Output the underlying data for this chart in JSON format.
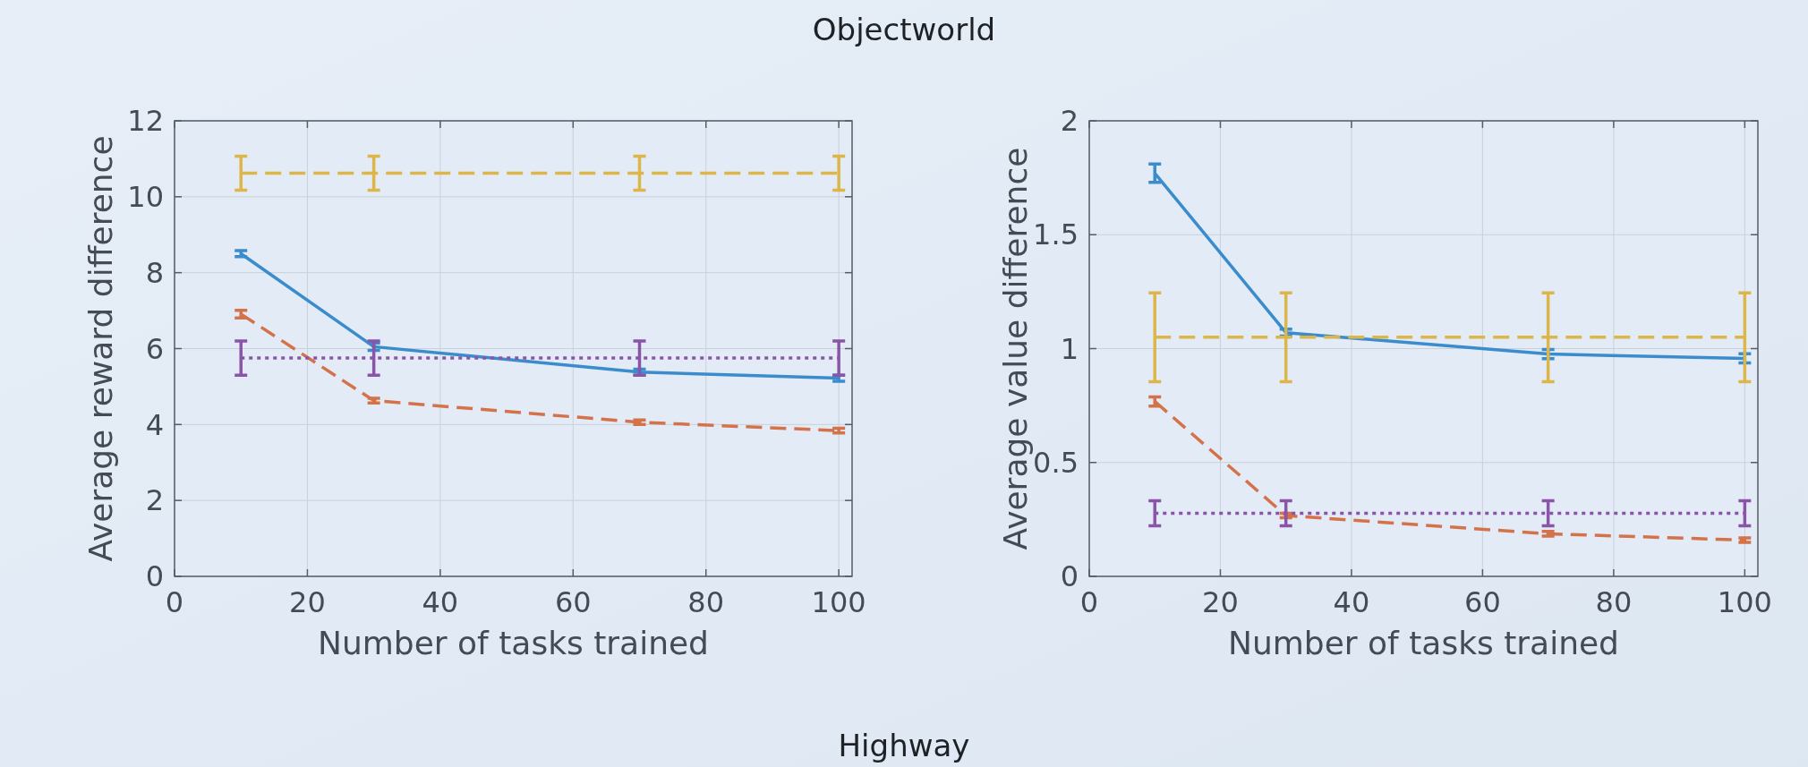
{
  "chart_data": [
    {
      "type": "line",
      "title": "Objectworld",
      "xlabel": "Number of tasks trained",
      "ylabel": "Average reward difference",
      "x": [
        10,
        30,
        70,
        100
      ],
      "xlim": [
        0,
        102
      ],
      "xticks": [
        0,
        20,
        40,
        60,
        80,
        100
      ],
      "ylim": [
        0,
        12
      ],
      "yticks": [
        0,
        2,
        4,
        6,
        8,
        10,
        12
      ],
      "grid": true,
      "series": [
        {
          "color": "#3a8ccc",
          "line_style": "solid",
          "values": [
            8.5,
            6.05,
            5.38,
            5.22
          ],
          "errors": [
            0.08,
            0.1,
            0.08,
            0.08
          ]
        },
        {
          "color": "#d4724a",
          "line_style": "dashed",
          "values": [
            6.91,
            4.63,
            4.06,
            3.84
          ],
          "errors": [
            0.1,
            0.06,
            0.06,
            0.06
          ]
        },
        {
          "color": "#ddb64a",
          "line_style": "dashed",
          "values": [
            10.62,
            10.62,
            10.62,
            10.62
          ],
          "errors": [
            0.45,
            0.45,
            0.45,
            0.45
          ]
        },
        {
          "color": "#8a55a8",
          "line_style": "dotted",
          "values": [
            5.75,
            5.75,
            5.75,
            5.75
          ],
          "errors": [
            0.45,
            0.45,
            0.45,
            0.45
          ]
        }
      ]
    },
    {
      "type": "line",
      "xlabel": "Number of tasks trained",
      "ylabel": "Average value difference",
      "annotations": [
        "Highway"
      ],
      "x": [
        10,
        30,
        70,
        100
      ],
      "xlim": [
        0,
        102
      ],
      "xticks": [
        0,
        20,
        40,
        60,
        80,
        100
      ],
      "ylim": [
        0,
        2
      ],
      "yticks": [
        0,
        0.5,
        1,
        1.5,
        2
      ],
      "grid": true,
      "series": [
        {
          "color": "#3a8ccc",
          "line_style": "solid",
          "values": [
            1.77,
            1.07,
            0.976,
            0.957
          ],
          "errors": [
            0.04,
            0.015,
            0.02,
            0.02
          ]
        },
        {
          "color": "#d4724a",
          "line_style": "dashed",
          "values": [
            0.768,
            0.267,
            0.187,
            0.159
          ],
          "errors": [
            0.02,
            0.01,
            0.01,
            0.01
          ]
        },
        {
          "color": "#ddb64a",
          "line_style": "dashed",
          "values": [
            1.05,
            1.05,
            1.05,
            1.05
          ],
          "errors": [
            0.195,
            0.195,
            0.195,
            0.195
          ]
        },
        {
          "color": "#8a55a8",
          "line_style": "dotted",
          "values": [
            0.277,
            0.277,
            0.277,
            0.277
          ],
          "errors": [
            0.055,
            0.055,
            0.055,
            0.055
          ]
        }
      ]
    }
  ]
}
